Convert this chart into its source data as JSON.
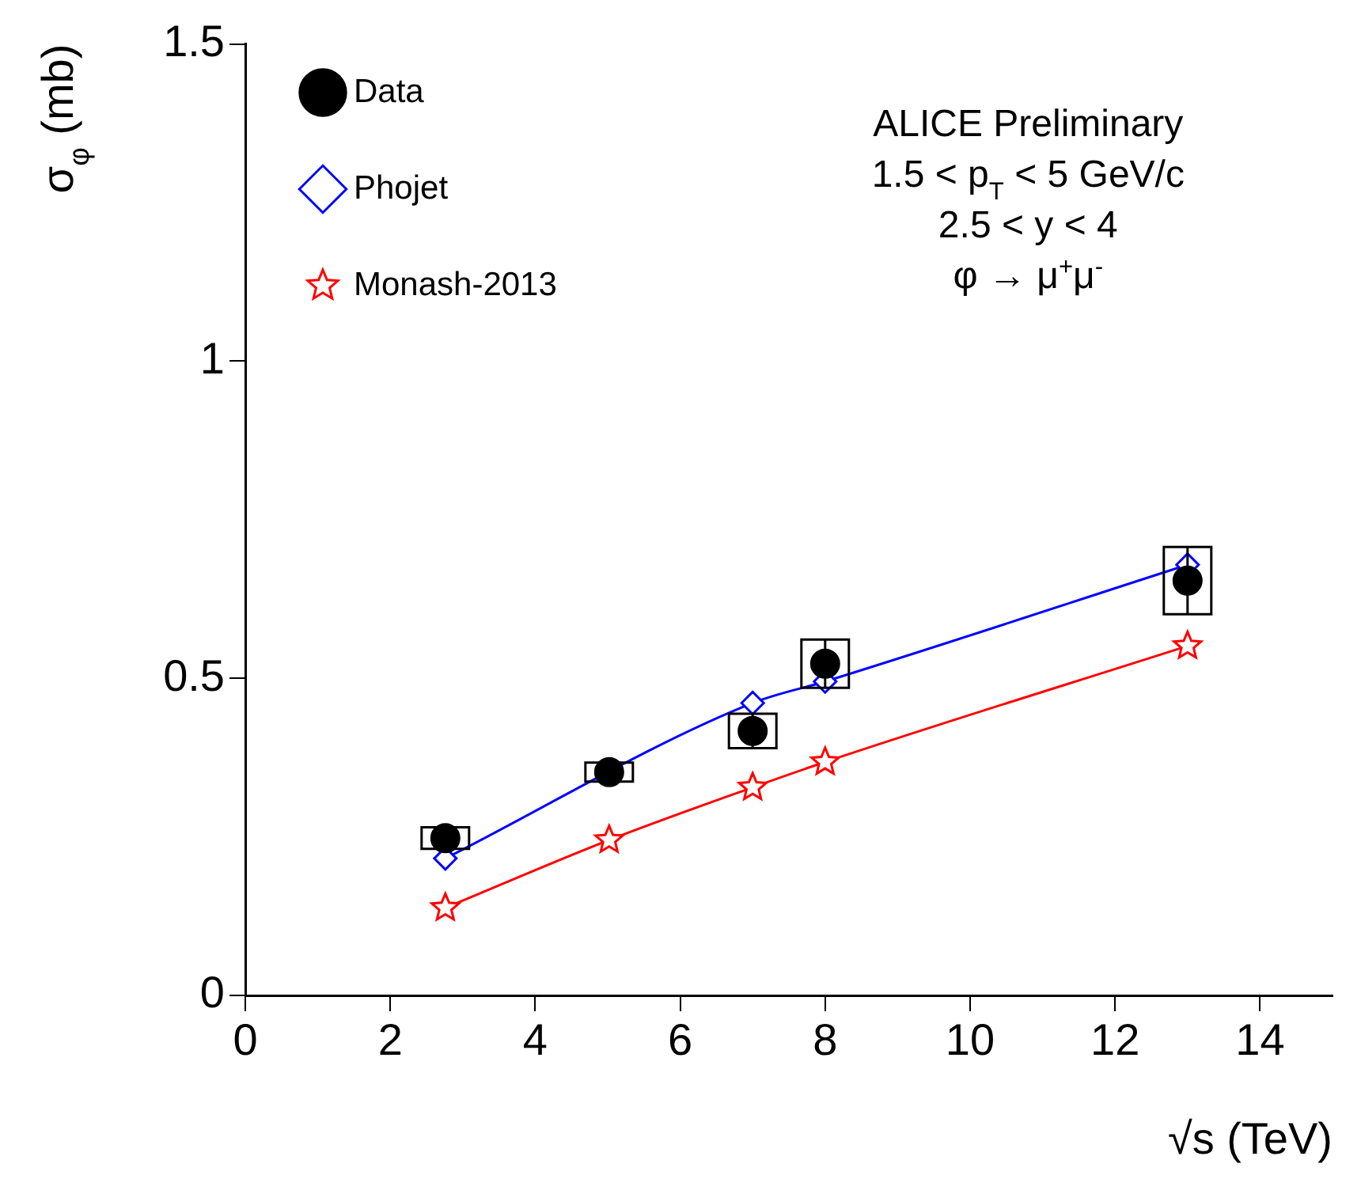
{
  "chart_data": {
    "type": "line",
    "xlabel": "√s (TeV)",
    "ylabel": "σ$_{φ}$ (mb)",
    "xlim": [
      0,
      15
    ],
    "xticks": [
      0,
      2,
      4,
      6,
      8,
      10,
      12,
      14
    ],
    "ylim": [
      0,
      1.5
    ],
    "yticks": [
      0,
      0.5,
      1,
      1.5
    ],
    "grid": false,
    "legend": "top left",
    "annotations": [
      "ALICE Preliminary",
      "1.5 < p$_{T}$ < 5 GeV/c",
      "2.5 < y < 4",
      "φ → μ$^{+}$μ$^{-}$"
    ],
    "series": [
      {
        "name": "Data",
        "type": "scatter",
        "marker": "circle",
        "color": "#000000",
        "x": [
          2.76,
          5.02,
          7,
          8,
          13
        ],
        "values": [
          0.248,
          0.352,
          0.417,
          0.523,
          0.654
        ],
        "errors": [
          0.017,
          0.015,
          0.027,
          0.038,
          0.053
        ]
      },
      {
        "name": "Phojet",
        "marker": "diamond",
        "color": "#0000ff",
        "x": [
          2.76,
          5.02,
          7,
          8,
          13
        ],
        "values": [
          0.216,
          null,
          0.461,
          0.495,
          0.679
        ]
      },
      {
        "name": "Monash-2013",
        "marker": "star",
        "color": "#ff0000",
        "x": [
          2.76,
          5.02,
          7,
          8,
          13
        ],
        "values": [
          0.138,
          0.245,
          0.328,
          0.368,
          0.551
        ]
      }
    ]
  }
}
